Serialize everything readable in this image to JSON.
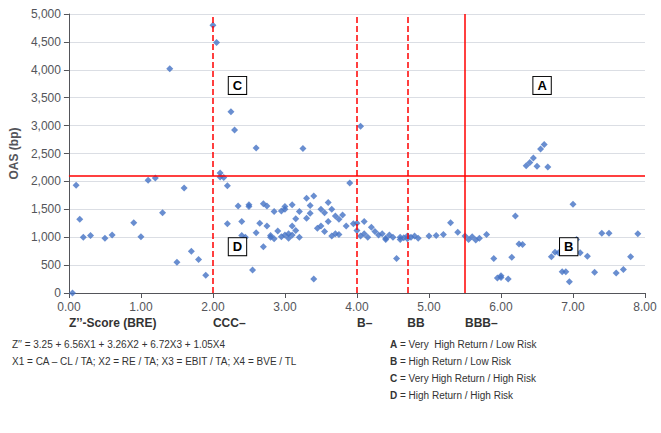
{
  "chart_data": {
    "type": "scatter",
    "xlabel": "Z’’-Score (BRE)",
    "ylabel": "OAS (bp)",
    "xlim": [
      0.0,
      8.0
    ],
    "ylim": [
      0,
      5000
    ],
    "xticks": [
      {
        "value": 0,
        "label": "0.00"
      },
      {
        "value": 1,
        "label": "1.00"
      },
      {
        "value": 2,
        "label": "2.00"
      },
      {
        "value": 3,
        "label": "3.00"
      },
      {
        "value": 4,
        "label": "4.00"
      },
      {
        "value": 5,
        "label": "5.00"
      },
      {
        "value": 6,
        "label": "6.00"
      },
      {
        "value": 7,
        "label": "7.00"
      },
      {
        "value": 8,
        "label": "8.00"
      }
    ],
    "yticks": [
      0,
      500,
      {
        "value": 1000,
        "label": "1,000"
      },
      {
        "value": 1500,
        "label": "1,500"
      },
      {
        "value": 2000,
        "label": "2,000"
      },
      {
        "value": 2500,
        "label": "2,500"
      },
      {
        "value": 3000,
        "label": "3,000"
      },
      {
        "value": 3500,
        "label": "3,500"
      },
      {
        "value": 4000,
        "label": "4,000"
      },
      {
        "value": 4500,
        "label": "4,500"
      },
      {
        "value": 5000,
        "label": "5,000"
      }
    ],
    "grid": true,
    "series": [
      {
        "color": "#4472C4",
        "marker": "diamond",
        "x": [
          0.05,
          0.1,
          0.15,
          0.2,
          0.3,
          0.5,
          0.6,
          0.9,
          1.0,
          1.1,
          1.2,
          1.3,
          1.4,
          1.5,
          1.6,
          1.7,
          1.8,
          1.9,
          2.0,
          2.05,
          2.1,
          2.1,
          2.15,
          2.2,
          2.2,
          2.25,
          2.3,
          2.35,
          2.4,
          2.4,
          2.45,
          2.5,
          2.5,
          2.55,
          2.6,
          2.6,
          2.65,
          2.7,
          2.7,
          2.75,
          2.75,
          2.8,
          2.8,
          2.85,
          2.85,
          2.9,
          2.95,
          2.95,
          3.0,
          3.0,
          3.0,
          3.05,
          3.05,
          3.1,
          3.1,
          3.1,
          3.15,
          3.15,
          3.2,
          3.2,
          3.25,
          3.3,
          3.3,
          3.35,
          3.35,
          3.4,
          3.4,
          3.45,
          3.5,
          3.5,
          3.55,
          3.55,
          3.6,
          3.6,
          3.65,
          3.65,
          3.7,
          3.7,
          3.75,
          3.75,
          3.8,
          3.85,
          3.9,
          3.95,
          4.0,
          4.0,
          4.05,
          4.05,
          4.1,
          4.1,
          4.15,
          4.2,
          4.25,
          4.3,
          4.35,
          4.4,
          4.4,
          4.45,
          4.5,
          4.55,
          4.6,
          4.6,
          4.65,
          4.7,
          4.7,
          4.75,
          4.8,
          4.85,
          5.0,
          5.1,
          5.2,
          5.3,
          5.4,
          5.5,
          5.55,
          5.6,
          5.65,
          5.7,
          5.8,
          5.9,
          5.95,
          6.0,
          6.0,
          6.1,
          6.15,
          6.2,
          6.25,
          6.3,
          6.35,
          6.4,
          6.45,
          6.5,
          6.55,
          6.6,
          6.65,
          6.7,
          6.75,
          6.8,
          6.85,
          6.9,
          6.95,
          7.0,
          7.05,
          7.1,
          7.2,
          7.3,
          7.4,
          7.5,
          7.6,
          7.7,
          7.8,
          7.9
        ],
        "values": [
          0,
          1930,
          1320,
          1000,
          1030,
          980,
          1040,
          1260,
          1010,
          2020,
          2060,
          1440,
          4020,
          550,
          1880,
          750,
          600,
          320,
          4800,
          4490,
          2150,
          2080,
          2070,
          1920,
          1240,
          3250,
          2920,
          1560,
          1280,
          1030,
          1000,
          1580,
          1550,
          410,
          1080,
          2600,
          1250,
          1600,
          830,
          1200,
          1560,
          1030,
          1000,
          1460,
          970,
          1110,
          1470,
          1010,
          1040,
          1500,
          1550,
          980,
          1060,
          1200,
          1040,
          1580,
          1330,
          1120,
          1000,
          1460,
          2590,
          1700,
          1340,
          1570,
          1430,
          250,
          1740,
          1160,
          1500,
          1200,
          1100,
          1440,
          1280,
          1620,
          1020,
          1500,
          1060,
          1380,
          1050,
          1320,
          1400,
          1200,
          1970,
          1240,
          1250,
          1120,
          1020,
          2990,
          1060,
          1280,
          1000,
          1180,
          1100,
          1040,
          1060,
          980,
          960,
          1040,
          1000,
          620,
          1000,
          960,
          990,
          1020,
          970,
          1000,
          1020,
          980,
          1020,
          1030,
          1050,
          1260,
          1090,
          1020,
          960,
          1010,
          950,
          980,
          1050,
          620,
          270,
          280,
          310,
          250,
          640,
          1380,
          880,
          870,
          2280,
          2340,
          2420,
          2270,
          2580,
          2660,
          2260,
          650,
          730,
          720,
          380,
          380,
          200,
          1590,
          960,
          720,
          660,
          370,
          1070,
          1070,
          360,
          420,
          650,
          1060
        ]
      }
    ],
    "hlines": [
      {
        "y": 2100,
        "color": "red",
        "line_style": "solid"
      }
    ],
    "vlines": [
      {
        "x": 2.0,
        "color": "red",
        "line_style": "dashed"
      },
      {
        "x": 4.0,
        "color": "red",
        "line_style": "dashed"
      },
      {
        "x": 4.7,
        "color": "red",
        "line_style": "dashed"
      },
      {
        "x": 5.5,
        "color": "red",
        "line_style": "solid"
      }
    ],
    "rating_labels": [
      {
        "text": "CCC–",
        "x": 2.0
      },
      {
        "text": "B–",
        "x": 4.0
      },
      {
        "text": "BB",
        "x": 4.7
      },
      {
        "text": "BBB–",
        "x": 5.5
      }
    ],
    "box_labels": [
      {
        "text": "A",
        "x": 6.45,
        "y": 3720
      },
      {
        "text": "B",
        "x": 6.82,
        "y": 830
      },
      {
        "text": "C",
        "x": 2.22,
        "y": 3720
      },
      {
        "text": "D",
        "x": 2.22,
        "y": 830
      }
    ],
    "footnotes": [
      "Z′′ = 3.25 + 6.56X1 + 3.26X2 + 6.72X3 + 1.05X4",
      "X1 = CA – CL / TA; X2 = RE / TA; X3 = EBIT / TA; X4 = BVE / TL"
    ],
    "key": [
      "A = Very  High Return / Low Risk",
      "B = High Return / Low Risk",
      "C = Very High Return / High Risk",
      "D = High Return / High Risk"
    ]
  }
}
